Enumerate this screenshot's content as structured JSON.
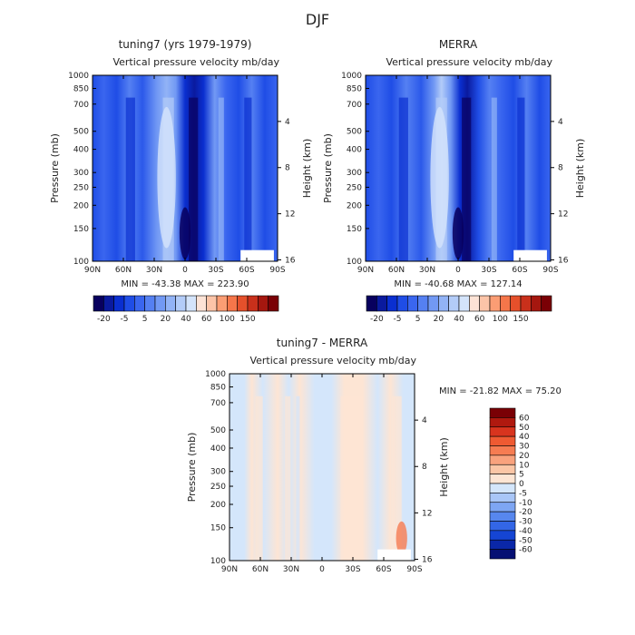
{
  "page_title": "DJF",
  "colors": {
    "frame": "#000000",
    "text": "#222222",
    "missing": "#ffffff"
  },
  "chart_data": [
    {
      "id": "panel_tuning7",
      "type": "heatmap",
      "title": "tuning7 (yrs 1979-1979)",
      "subtitle_left": "Vertical pressure velocity",
      "subtitle_right": "mb/day",
      "xlabel": "",
      "ylabel": "Pressure (mb)",
      "y2label": "Height (km)",
      "x_ticks": [
        "90N",
        "60N",
        "30N",
        "0",
        "30S",
        "60S",
        "90S"
      ],
      "x_range": [
        90,
        -90
      ],
      "y_ticks": [
        "100",
        "150",
        "200",
        "250",
        "300",
        "400",
        "500",
        "700",
        "850",
        "1000"
      ],
      "y_range_mb": [
        1000,
        100
      ],
      "y_scale": "log",
      "y2_ticks": [
        "16",
        "12",
        "8",
        "4"
      ],
      "stats": "MIN = -43.38   MAX = 223.90",
      "colorbar": {
        "orientation": "horizontal",
        "labels": [
          "-20",
          "-5",
          "5",
          "20",
          "40",
          "60",
          "100",
          "150"
        ],
        "colors": [
          "#08005e",
          "#0a1a9e",
          "#0a2fd0",
          "#1f4de6",
          "#3a66ef",
          "#5580f2",
          "#7299f4",
          "#92b3f6",
          "#b3ccf8",
          "#d4e4fb",
          "#fde3d6",
          "#fcc4a8",
          "#fb9d74",
          "#f5764a",
          "#e5502b",
          "#c9301b",
          "#a5170f",
          "#7a0005"
        ]
      }
    },
    {
      "id": "panel_merra",
      "type": "heatmap",
      "title": "MERRA",
      "subtitle_left": "Vertical pressure velocity",
      "subtitle_right": "mb/day",
      "xlabel": "",
      "ylabel": "Pressure (mb)",
      "y2label": "Height (km)",
      "x_ticks": [
        "90N",
        "60N",
        "30N",
        "0",
        "30S",
        "60S",
        "90S"
      ],
      "x_range": [
        90,
        -90
      ],
      "y_ticks": [
        "100",
        "150",
        "200",
        "250",
        "300",
        "400",
        "500",
        "700",
        "850",
        "1000"
      ],
      "y_range_mb": [
        1000,
        100
      ],
      "y_scale": "log",
      "y2_ticks": [
        "16",
        "12",
        "8",
        "4"
      ],
      "stats": "MIN = -40.68   MAX = 127.14",
      "colorbar": {
        "orientation": "horizontal",
        "labels": [
          "-20",
          "-5",
          "5",
          "20",
          "40",
          "60",
          "100",
          "150"
        ],
        "colors": [
          "#08005e",
          "#0a1a9e",
          "#0a2fd0",
          "#1f4de6",
          "#3a66ef",
          "#5580f2",
          "#7299f4",
          "#92b3f6",
          "#b3ccf8",
          "#d4e4fb",
          "#fde3d6",
          "#fcc4a8",
          "#fb9d74",
          "#f5764a",
          "#e5502b",
          "#c9301b",
          "#a5170f",
          "#7a0005"
        ]
      }
    },
    {
      "id": "panel_diff",
      "type": "heatmap",
      "title": "tuning7 - MERRA",
      "subtitle_left": "Vertical pressure velocity",
      "subtitle_right": "mb/day",
      "xlabel": "",
      "ylabel": "Pressure (mb)",
      "y2label": "Height (km)",
      "x_ticks": [
        "90N",
        "60N",
        "30N",
        "0",
        "30S",
        "60S",
        "90S"
      ],
      "x_range": [
        90,
        -90
      ],
      "y_ticks": [
        "100",
        "150",
        "200",
        "250",
        "300",
        "400",
        "500",
        "700",
        "850",
        "1000"
      ],
      "y_range_mb": [
        1000,
        100
      ],
      "y_scale": "log",
      "y2_ticks": [
        "16",
        "12",
        "8",
        "4"
      ],
      "stats": "MIN = -21.82   MAX =  75.20",
      "colorbar": {
        "orientation": "vertical",
        "labels": [
          "60",
          "50",
          "40",
          "30",
          "20",
          "10",
          "5",
          "0",
          "-5",
          "-10",
          "-20",
          "-30",
          "-40",
          "-50",
          "-60"
        ],
        "colors": [
          "#7a0005",
          "#b0190f",
          "#d8341e",
          "#ef5a32",
          "#f67c52",
          "#f9a27d",
          "#fbc6a6",
          "#fde5d4",
          "#d4e6fb",
          "#a9c6f7",
          "#7ea6f3",
          "#5787ee",
          "#3366e6",
          "#1545d4",
          "#0a27a8",
          "#061073"
        ]
      }
    }
  ]
}
